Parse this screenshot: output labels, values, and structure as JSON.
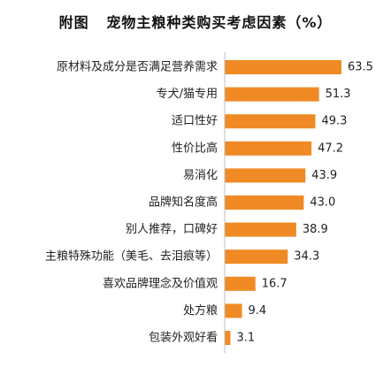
{
  "chart_data": {
    "type": "bar",
    "orientation": "horizontal",
    "title": "附图   宠物主粮种类购买考虑因素（%）",
    "xlabel": "",
    "ylabel": "",
    "categories": [
      "原材料及成分是否满足营养需求",
      "专犬/猫专用",
      "适口性好",
      "性价比高",
      "易消化",
      "品牌知名度高",
      "别人推荐，口碑好",
      "主粮特殊功能（美毛、去泪痕等）",
      "喜欢品牌理念及价值观",
      "处方粮",
      "包装外观好看"
    ],
    "values": [
      63.5,
      51.3,
      49.3,
      47.2,
      43.9,
      43.0,
      38.9,
      34.3,
      16.7,
      9.4,
      3.1
    ],
    "value_labels": [
      "63.5",
      "51.3",
      "49.3",
      "47.2",
      "43.9",
      "43.0",
      "38.9",
      "34.3",
      "16.7",
      "9.4",
      "3.1"
    ],
    "xlim": [
      0,
      63.5
    ],
    "grid": false,
    "legend": "none",
    "colors": {
      "bar": "#F08A24",
      "text": "#222222"
    }
  }
}
